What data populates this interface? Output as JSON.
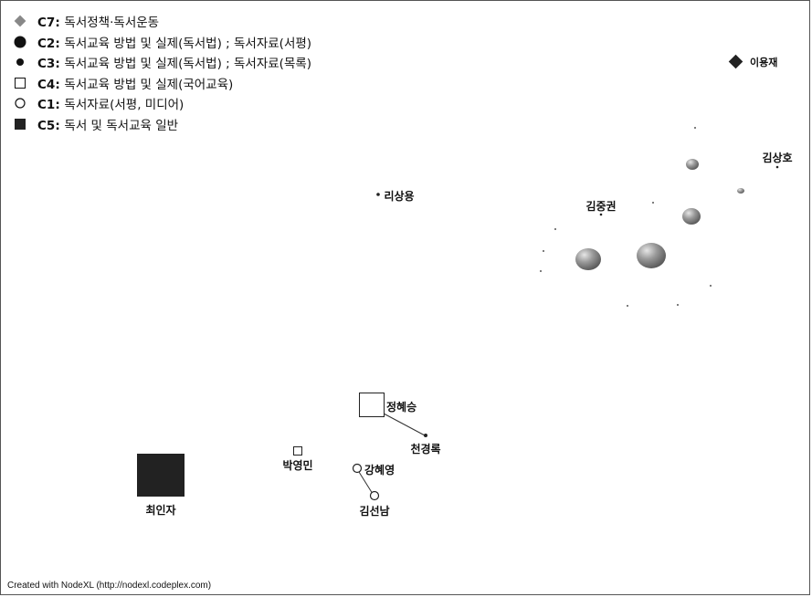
{
  "legend": [
    {
      "code": "C7",
      "text": "독서정책·독서운동",
      "symbol": "diamond-gray"
    },
    {
      "code": "C2",
      "text": "독서교육 방법 및 실제(독서법) ; 독서자료(서평)",
      "symbol": "disk-large"
    },
    {
      "code": "C3",
      "text": "독서교육 방법 및 실제(독서법) ; 독서자료(목록)",
      "symbol": "disk-small"
    },
    {
      "code": "C4",
      "text": "독서교육 방법 및 실제(국어교육)",
      "symbol": "square-outline"
    },
    {
      "code": "C1",
      "text": "독서자료(서평, 미디어)",
      "symbol": "circle-outline"
    },
    {
      "code": "C5",
      "text": "독서 및 독서교육 일반",
      "symbol": "square-filled"
    }
  ],
  "nodes": {
    "lee_yongjae": {
      "label": "이용재",
      "cluster": "C7"
    },
    "kim_sangho": {
      "label": "김상호",
      "cluster": "C3"
    },
    "ri_sangyong": {
      "label": "리상용",
      "cluster": "C3"
    },
    "kim_junggwon": {
      "label": "김중권",
      "cluster": "C3"
    },
    "jeong_hyeseung": {
      "label": "정혜승",
      "cluster": "C4"
    },
    "cheon_gyeongrok": {
      "label": "천경록",
      "cluster": "C3"
    },
    "park_youngmin": {
      "label": "박영민",
      "cluster": "C4"
    },
    "kang_hyeyoung": {
      "label": "강혜영",
      "cluster": "C1"
    },
    "kim_seonnam": {
      "label": "김선남",
      "cluster": "C1"
    },
    "choi_inja": {
      "label": "최인자",
      "cluster": "C5"
    }
  },
  "colors": {
    "c7": "#777777",
    "dark": "#222222",
    "edge": "#333333"
  },
  "credit": "Created with NodeXL (http://nodexl.codeplex.com)"
}
